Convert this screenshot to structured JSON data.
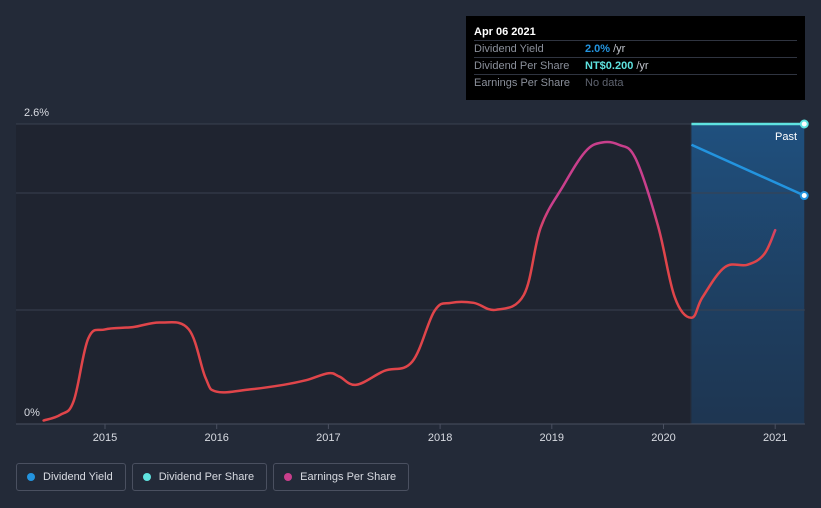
{
  "chart_data": {
    "type": "line",
    "x_ticks": [
      "2015",
      "2016",
      "2017",
      "2018",
      "2019",
      "2020",
      "2021"
    ],
    "y_ticks": [
      "0%",
      "2.6%"
    ],
    "ylim": [
      0,
      2.6
    ],
    "grid": true,
    "past_label": "Past",
    "series": [
      {
        "name": "Dividend Yield",
        "color": "#2394df",
        "values": [
          {
            "x": 2020.25,
            "y": 2.42
          },
          {
            "x": 2021.26,
            "y": 1.98
          }
        ]
      },
      {
        "name": "Dividend Per Share",
        "color": "#5fe3e0",
        "values": [
          {
            "x": 2020.25,
            "y": 2.6
          },
          {
            "x": 2021.26,
            "y": 2.6
          }
        ]
      },
      {
        "name": "Earnings Per Share",
        "color": "#e0454a",
        "color_alt": "#c93f8c",
        "values": [
          {
            "x": 2014.45,
            "y": 0.03
          },
          {
            "x": 2014.6,
            "y": 0.08
          },
          {
            "x": 2014.72,
            "y": 0.2
          },
          {
            "x": 2014.85,
            "y": 0.74
          },
          {
            "x": 2015.0,
            "y": 0.82
          },
          {
            "x": 2015.25,
            "y": 0.84
          },
          {
            "x": 2015.5,
            "y": 0.88
          },
          {
            "x": 2015.75,
            "y": 0.82
          },
          {
            "x": 2015.9,
            "y": 0.4
          },
          {
            "x": 2016.0,
            "y": 0.28
          },
          {
            "x": 2016.3,
            "y": 0.3
          },
          {
            "x": 2016.6,
            "y": 0.34
          },
          {
            "x": 2016.8,
            "y": 0.38
          },
          {
            "x": 2017.0,
            "y": 0.44
          },
          {
            "x": 2017.1,
            "y": 0.41
          },
          {
            "x": 2017.25,
            "y": 0.34
          },
          {
            "x": 2017.5,
            "y": 0.46
          },
          {
            "x": 2017.75,
            "y": 0.54
          },
          {
            "x": 2017.95,
            "y": 0.98
          },
          {
            "x": 2018.1,
            "y": 1.05
          },
          {
            "x": 2018.3,
            "y": 1.05
          },
          {
            "x": 2018.5,
            "y": 0.99
          },
          {
            "x": 2018.75,
            "y": 1.12
          },
          {
            "x": 2018.9,
            "y": 1.7
          },
          {
            "x": 2019.1,
            "y": 2.06
          },
          {
            "x": 2019.3,
            "y": 2.36
          },
          {
            "x": 2019.45,
            "y": 2.44
          },
          {
            "x": 2019.6,
            "y": 2.42
          },
          {
            "x": 2019.75,
            "y": 2.3
          },
          {
            "x": 2019.95,
            "y": 1.72
          },
          {
            "x": 2020.1,
            "y": 1.1
          },
          {
            "x": 2020.25,
            "y": 0.92
          },
          {
            "x": 2020.35,
            "y": 1.1
          },
          {
            "x": 2020.55,
            "y": 1.36
          },
          {
            "x": 2020.75,
            "y": 1.38
          },
          {
            "x": 2020.9,
            "y": 1.47
          },
          {
            "x": 2021.0,
            "y": 1.68
          }
        ]
      }
    ]
  },
  "tooltip": {
    "date": "Apr 06 2021",
    "rows": [
      {
        "label": "Dividend Yield",
        "value": "2.0%",
        "unit": "/yr",
        "color": "#2394df"
      },
      {
        "label": "Dividend Per Share",
        "value": "NT$0.200",
        "unit": "/yr",
        "color": "#5fe3e0"
      },
      {
        "label": "Earnings Per Share",
        "value": "No data",
        "unit": "",
        "color": "#5f6470"
      }
    ]
  },
  "legend": [
    {
      "label": "Dividend Yield",
      "color": "#2394df"
    },
    {
      "label": "Dividend Per Share",
      "color": "#5fe3e0"
    },
    {
      "label": "Earnings Per Share",
      "color": "#c93f8c"
    }
  ]
}
